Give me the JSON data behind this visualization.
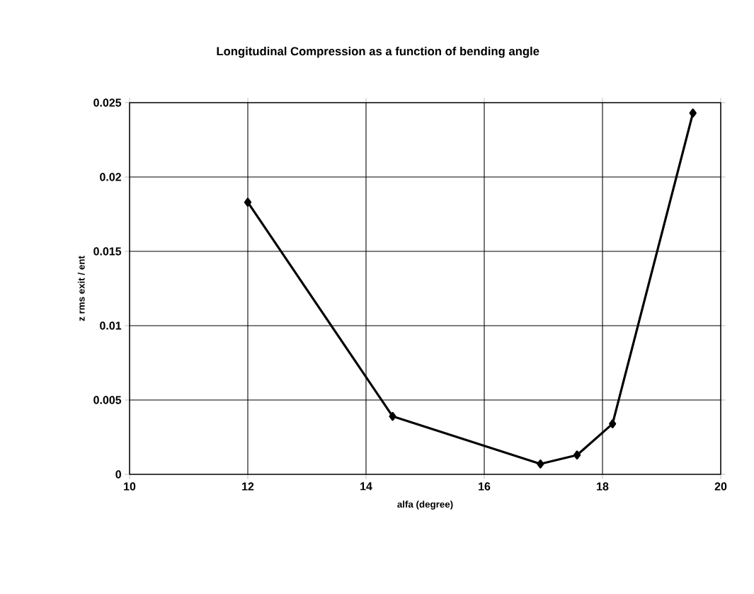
{
  "chart_data": {
    "type": "line",
    "title": "Longitudinal Compression as a function of bending angle",
    "xlabel": "alfa (degree)",
    "ylabel": "z rms exit / ent",
    "x": [
      12,
      14.45,
      16.95,
      17.57,
      18.17,
      19.53
    ],
    "series": [
      {
        "color": "#000000",
        "values": [
          0.0183,
          0.0039,
          0.0007,
          0.0013,
          0.0034,
          0.0243
        ]
      }
    ],
    "xlim": [
      10,
      20
    ],
    "xticks": [
      10,
      12,
      14,
      16,
      18,
      20
    ],
    "ylim": [
      0,
      0.025
    ],
    "yticks": [
      0,
      0.005,
      0.01,
      0.015,
      0.02,
      0.025
    ],
    "grid": true,
    "marker": "diamond",
    "line_style": "solid"
  }
}
